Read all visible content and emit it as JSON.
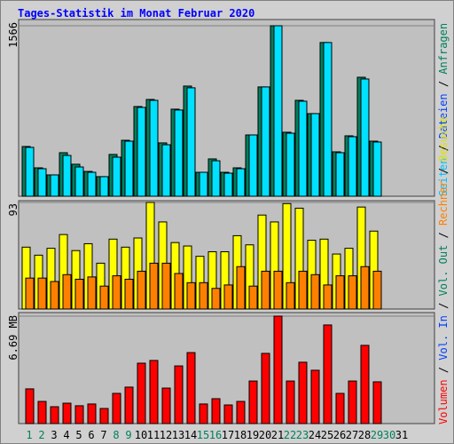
{
  "chart_data": {
    "type": "bar",
    "title": "Tages-Statistik im Monat Februar 2020",
    "categories": [
      "1",
      "2",
      "3",
      "4",
      "5",
      "6",
      "7",
      "8",
      "9",
      "10",
      "11",
      "12",
      "13",
      "14",
      "15",
      "16",
      "17",
      "18",
      "19",
      "20",
      "21",
      "22",
      "23",
      "24",
      "25",
      "26",
      "27",
      "28",
      "29",
      "30",
      "31"
    ],
    "category_colors": [
      "#00805c",
      "#00805c",
      "#000000",
      "#000000",
      "#000000",
      "#000000",
      "#000000",
      "#00805c",
      "#00805c",
      "#000000",
      "#000000",
      "#000000",
      "#000000",
      "#000000",
      "#00805c",
      "#00805c",
      "#000000",
      "#000000",
      "#000000",
      "#000000",
      "#000000",
      "#00805c",
      "#00805c",
      "#000000",
      "#000000",
      "#000000",
      "#000000",
      "#000000",
      "#00805c",
      "#00805c",
      "#000000"
    ],
    "legend_separator": " / ",
    "legends": [
      [
        {
          "name": "Seiten",
          "color": "#00c0ff"
        },
        {
          "name": "Dateien",
          "color": "#0040ff"
        },
        {
          "name": "Anfragen",
          "color": "#00805c"
        }
      ],
      [
        {
          "name": "Volumen",
          "color": "#ff0000"
        },
        {
          "name": "Vol. In",
          "color": "#0040ff"
        },
        {
          "name": "Vol. Out",
          "color": "#00805c"
        },
        {
          "name": "Rechner",
          "color": "#ff8000"
        },
        {
          "name": "Besuche",
          "color": "#e0e000"
        }
      ]
    ],
    "panels": [
      {
        "ylim": [
          0,
          1566
        ],
        "yticks": [
          1566
        ],
        "series": [
          {
            "name": "Anfragen",
            "color": "#00805c",
            "values": [
              457,
              261,
              196,
              400,
              294,
              228,
              180,
              384,
              514,
              824,
              889,
              490,
              800,
              1012,
              220,
              343,
              220,
              261,
              563,
              1004,
              1566,
              588,
              881,
              759,
              1412,
              408,
              555,
              1093,
              506,
              null,
              null
            ]
          },
          {
            "name": "Seiten",
            "color": "#00e0ff",
            "values": [
              449,
              253,
              196,
              375,
              269,
              220,
              180,
              359,
              506,
              816,
              881,
              473,
              792,
              996,
              220,
              326,
              212,
              253,
              563,
              1004,
              1566,
              579,
              873,
              759,
              1412,
              400,
              547,
              1077,
              498,
              null,
              null
            ]
          }
        ]
      },
      {
        "ylim": [
          0,
          93
        ],
        "yticks": [
          93
        ],
        "series": [
          {
            "name": "Besuche",
            "color": "#ffff00",
            "values": [
              54,
              47,
              53,
              65,
              51,
              57,
              40,
              61,
              54,
              62,
              93,
              76,
              58,
              55,
              46,
              50,
              50,
              64,
              56,
              82,
              76,
              92,
              88,
              60,
              61,
              48,
              53,
              89,
              68,
              null,
              null
            ]
          },
          {
            "name": "Rechner",
            "color": "#ff8000",
            "values": [
              27,
              27,
              24,
              30,
              26,
              28,
              20,
              29,
              26,
              33,
              40,
              40,
              31,
              23,
              23,
              18,
              21,
              37,
              20,
              33,
              33,
              23,
              33,
              30,
              21,
              29,
              29,
              37,
              33,
              null,
              null
            ]
          }
        ]
      },
      {
        "ylim": [
          0,
          6.69
        ],
        "yticks": [
          {
            "value": 6.69,
            "label": "6.69 MB"
          }
        ],
        "series": [
          {
            "name": "Volumen",
            "color": "#ff0000",
            "values": [
              2.16,
              1.38,
              1.05,
              1.27,
              1.11,
              1.22,
              0.94,
              1.88,
              2.27,
              3.76,
              3.93,
              2.21,
              3.59,
              4.42,
              1.22,
              1.55,
              1.16,
              1.38,
              2.65,
              4.37,
              6.69,
              2.65,
              3.82,
              3.32,
              6.14,
              1.88,
              2.65,
              4.87,
              2.6,
              null,
              null
            ]
          }
        ]
      }
    ]
  }
}
